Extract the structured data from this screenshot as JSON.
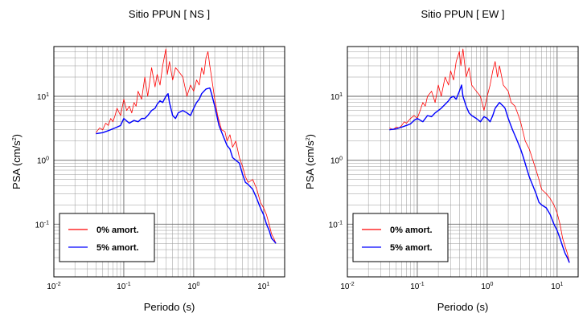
{
  "chart_data": [
    {
      "type": "line",
      "title": "Sitio PPUN [ NS ]",
      "xlabel": "Periodo (s)",
      "ylabel": "PSA (cm/s",
      "ylabel_sup": "2",
      "ylabel_close": ")",
      "x_scale": "log",
      "y_scale": "log",
      "xlim": [
        0.01,
        20
      ],
      "ylim": [
        0.015,
        60
      ],
      "x_ticks": [
        {
          "value": 0.01,
          "base": "10",
          "exp": "-2"
        },
        {
          "value": 0.1,
          "base": "10",
          "exp": "-1"
        },
        {
          "value": 1,
          "base": "10",
          "exp": "0"
        },
        {
          "value": 10,
          "base": "10",
          "exp": "1"
        }
      ],
      "y_ticks": [
        {
          "value": 0.1,
          "base": "10",
          "exp": "-1"
        },
        {
          "value": 1,
          "base": "10",
          "exp": "0"
        },
        {
          "value": 10,
          "base": "10",
          "exp": "1"
        }
      ],
      "grid": true,
      "legend_position": "bottom-left",
      "series": [
        {
          "name": "0% amort.",
          "color": "#ff0000",
          "x": [
            0.04,
            0.045,
            0.05,
            0.055,
            0.06,
            0.065,
            0.07,
            0.075,
            0.08,
            0.09,
            0.1,
            0.11,
            0.12,
            0.13,
            0.14,
            0.15,
            0.16,
            0.18,
            0.2,
            0.22,
            0.25,
            0.28,
            0.3,
            0.33,
            0.36,
            0.4,
            0.42,
            0.45,
            0.5,
            0.55,
            0.6,
            0.7,
            0.8,
            0.9,
            1.0,
            1.1,
            1.2,
            1.3,
            1.4,
            1.5,
            1.6,
            1.7,
            1.8,
            2.0,
            2.2,
            2.5,
            2.8,
            3.0,
            3.3,
            3.6,
            4.0,
            4.5,
            5.0,
            5.5,
            6.0,
            7.0,
            8.0,
            9.0,
            10.0,
            11.0,
            12.0,
            13.0,
            14.0,
            15.0
          ],
          "y": [
            2.7,
            3.2,
            3.0,
            3.8,
            3.5,
            4.5,
            4.0,
            5.0,
            6.5,
            5.0,
            9.0,
            6.0,
            7.0,
            5.5,
            8.0,
            7.0,
            12.0,
            9.0,
            20.0,
            10.0,
            28.0,
            14.0,
            22.0,
            15.0,
            30.0,
            55.0,
            22.0,
            35.0,
            18.0,
            28.0,
            25.0,
            20.0,
            10.0,
            15.0,
            12.0,
            18.0,
            15.0,
            28.0,
            22.0,
            40.0,
            50.0,
            30.0,
            20.0,
            9.0,
            5.0,
            3.0,
            2.8,
            2.0,
            2.5,
            1.6,
            2.0,
            1.1,
            0.8,
            0.55,
            0.45,
            0.5,
            0.35,
            0.22,
            0.18,
            0.14,
            0.1,
            0.07,
            0.06,
            0.05
          ]
        },
        {
          "name": "5% amort.",
          "color": "#0000ff",
          "x": [
            0.04,
            0.05,
            0.06,
            0.07,
            0.08,
            0.09,
            0.1,
            0.12,
            0.14,
            0.16,
            0.18,
            0.2,
            0.22,
            0.25,
            0.28,
            0.3,
            0.33,
            0.36,
            0.4,
            0.43,
            0.45,
            0.5,
            0.55,
            0.6,
            0.7,
            0.8,
            0.9,
            1.0,
            1.1,
            1.2,
            1.3,
            1.5,
            1.7,
            1.8,
            2.0,
            2.3,
            2.6,
            3.0,
            3.3,
            3.6,
            4.0,
            4.5,
            5.0,
            5.5,
            6.0,
            7.0,
            8.0,
            9.0,
            10.0,
            11.0,
            12.0,
            13.0,
            14.0,
            15.0
          ],
          "y": [
            2.6,
            2.7,
            2.9,
            3.1,
            3.3,
            3.5,
            4.5,
            3.8,
            4.2,
            4.0,
            4.5,
            4.5,
            5.0,
            6.0,
            6.5,
            7.5,
            8.5,
            8.0,
            10.0,
            11.0,
            8.0,
            5.0,
            4.5,
            5.5,
            6.0,
            5.5,
            5.0,
            6.5,
            8.0,
            9.0,
            11.0,
            13.0,
            13.5,
            11.0,
            7.0,
            3.5,
            2.5,
            1.7,
            1.5,
            1.1,
            1.0,
            0.9,
            0.6,
            0.45,
            0.42,
            0.35,
            0.25,
            0.18,
            0.14,
            0.1,
            0.08,
            0.06,
            0.055,
            0.05
          ]
        }
      ]
    },
    {
      "type": "line",
      "title": "Sitio PPUN [ EW ]",
      "xlabel": "Periodo (s)",
      "ylabel": "PSA (cm/s",
      "ylabel_sup": "2",
      "ylabel_close": ")",
      "x_scale": "log",
      "y_scale": "log",
      "xlim": [
        0.01,
        20
      ],
      "ylim": [
        0.015,
        60
      ],
      "x_ticks": [
        {
          "value": 0.01,
          "base": "10",
          "exp": "-2"
        },
        {
          "value": 0.1,
          "base": "10",
          "exp": "-1"
        },
        {
          "value": 1,
          "base": "10",
          "exp": "0"
        },
        {
          "value": 10,
          "base": "10",
          "exp": "1"
        }
      ],
      "y_ticks": [
        {
          "value": 0.1,
          "base": "10",
          "exp": "-1"
        },
        {
          "value": 1,
          "base": "10",
          "exp": "0"
        },
        {
          "value": 10,
          "base": "10",
          "exp": "1"
        }
      ],
      "grid": true,
      "legend_position": "bottom-left",
      "series": [
        {
          "name": "0% amort.",
          "color": "#ff0000",
          "x": [
            0.04,
            0.045,
            0.05,
            0.055,
            0.06,
            0.065,
            0.07,
            0.08,
            0.09,
            0.1,
            0.11,
            0.12,
            0.13,
            0.14,
            0.16,
            0.18,
            0.2,
            0.22,
            0.25,
            0.28,
            0.3,
            0.33,
            0.36,
            0.4,
            0.42,
            0.45,
            0.5,
            0.55,
            0.6,
            0.7,
            0.8,
            0.9,
            1.0,
            1.1,
            1.2,
            1.3,
            1.4,
            1.5,
            1.7,
            2.0,
            2.2,
            2.5,
            2.8,
            3.0,
            3.5,
            4.0,
            4.5,
            5.0,
            5.5,
            6.0,
            7.0,
            8.0,
            9.0,
            10.0,
            11.0,
            12.0,
            13.0,
            14.0,
            15.0
          ],
          "y": [
            3.2,
            3.0,
            3.3,
            3.2,
            3.5,
            4.0,
            3.8,
            4.5,
            5.0,
            4.5,
            6.0,
            8.0,
            7.0,
            10.0,
            12.0,
            8.0,
            15.0,
            10.0,
            20.0,
            15.0,
            25.0,
            18.0,
            35.0,
            50.0,
            30.0,
            55.0,
            20.0,
            28.0,
            15.0,
            12.0,
            10.0,
            6.0,
            10.0,
            15.0,
            25.0,
            35.0,
            20.0,
            30.0,
            15.0,
            12.0,
            8.0,
            7.0,
            5.0,
            4.0,
            2.0,
            1.5,
            1.0,
            0.7,
            0.5,
            0.35,
            0.3,
            0.25,
            0.2,
            0.15,
            0.1,
            0.06,
            0.045,
            0.035,
            0.025
          ]
        },
        {
          "name": "5% amort.",
          "color": "#0000ff",
          "x": [
            0.04,
            0.05,
            0.06,
            0.07,
            0.08,
            0.09,
            0.1,
            0.12,
            0.14,
            0.16,
            0.18,
            0.2,
            0.22,
            0.25,
            0.28,
            0.3,
            0.33,
            0.36,
            0.4,
            0.43,
            0.45,
            0.5,
            0.55,
            0.6,
            0.7,
            0.8,
            0.9,
            1.0,
            1.1,
            1.2,
            1.3,
            1.5,
            1.7,
            1.8,
            2.0,
            2.3,
            2.6,
            3.0,
            3.3,
            3.6,
            4.0,
            4.5,
            5.0,
            5.5,
            6.0,
            7.0,
            8.0,
            9.0,
            10.0,
            11.0,
            12.0,
            13.0,
            14.0,
            15.0
          ],
          "y": [
            3.0,
            3.1,
            3.3,
            3.5,
            3.7,
            4.2,
            4.5,
            4.0,
            5.0,
            4.8,
            5.5,
            6.0,
            6.5,
            7.5,
            8.5,
            9.5,
            10.0,
            9.0,
            12.0,
            15.0,
            10.0,
            7.0,
            5.5,
            5.0,
            4.5,
            4.0,
            4.8,
            4.5,
            4.0,
            5.0,
            6.5,
            8.0,
            7.0,
            6.5,
            4.5,
            3.0,
            2.2,
            1.5,
            1.1,
            0.8,
            0.55,
            0.4,
            0.3,
            0.22,
            0.2,
            0.18,
            0.14,
            0.1,
            0.08,
            0.06,
            0.045,
            0.035,
            0.03,
            0.025
          ]
        }
      ]
    }
  ]
}
